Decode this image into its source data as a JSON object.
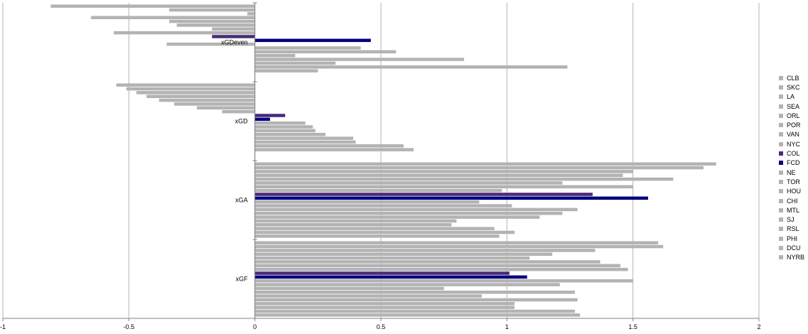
{
  "chart_data": {
    "type": "bar",
    "orientation": "horizontal",
    "categories": [
      "xGDeven",
      "xGD",
      "xGA",
      "xGF"
    ],
    "xlim": [
      -1,
      2
    ],
    "xticks": [
      "-1",
      "-0.5",
      "0",
      "0.5",
      "1",
      "1.5",
      "2"
    ],
    "xtick_values": [
      -1,
      -0.5,
      0,
      0.5,
      1,
      1.5,
      2
    ],
    "grid": true,
    "legend_position": "right",
    "colors": {
      "default": "#b3b3b3",
      "COL": "#4b2a76",
      "FCD": "#00007f",
      "grid": "#b3b3b3",
      "axis": "#808080"
    },
    "series": [
      {
        "name": "CLB",
        "values": [
          -0.81,
          -0.55,
          1.83,
          1.6
        ]
      },
      {
        "name": "SKC",
        "values": [
          -0.34,
          -0.51,
          1.78,
          1.62
        ]
      },
      {
        "name": "LA",
        "values": [
          -0.03,
          -0.47,
          1.5,
          1.35
        ]
      },
      {
        "name": "SEA",
        "values": [
          -0.65,
          -0.43,
          1.46,
          1.18
        ]
      },
      {
        "name": "ORL",
        "values": [
          -0.34,
          -0.38,
          1.66,
          1.09
        ]
      },
      {
        "name": "POR",
        "values": [
          -0.31,
          -0.32,
          1.22,
          1.37
        ]
      },
      {
        "name": "VAN",
        "values": [
          -0.17,
          -0.23,
          1.5,
          1.45
        ]
      },
      {
        "name": "NYC",
        "values": [
          -0.56,
          -0.13,
          0.98,
          1.48
        ]
      },
      {
        "name": "COL",
        "values": [
          -0.17,
          0.12,
          1.34,
          1.01
        ]
      },
      {
        "name": "FCD",
        "values": [
          0.46,
          0.06,
          1.56,
          1.08
        ]
      },
      {
        "name": "NE",
        "values": [
          -0.35,
          0.2,
          0.89,
          1.5
        ]
      },
      {
        "name": "TOR",
        "values": [
          0.42,
          0.23,
          1.02,
          1.21
        ]
      },
      {
        "name": "HOU",
        "values": [
          0.56,
          0.24,
          1.28,
          0.75
        ]
      },
      {
        "name": "CHI",
        "values": [
          0.16,
          0.28,
          1.22,
          1.27
        ]
      },
      {
        "name": "MTL",
        "values": [
          0.83,
          0.39,
          1.13,
          0.9
        ]
      },
      {
        "name": "SJ",
        "values": [
          0.32,
          0.4,
          0.8,
          1.28
        ]
      },
      {
        "name": "RSL",
        "values": [
          1.24,
          0.59,
          0.78,
          1.03
        ]
      },
      {
        "name": "PHI",
        "values": [
          0.25,
          0.63,
          0.95,
          1.03
        ]
      },
      {
        "name": "DCU",
        "values": [
          0.0,
          0.0,
          1.03,
          1.27
        ]
      },
      {
        "name": "NYRB",
        "values": [
          0.0,
          0.0,
          0.97,
          1.29
        ]
      }
    ]
  }
}
